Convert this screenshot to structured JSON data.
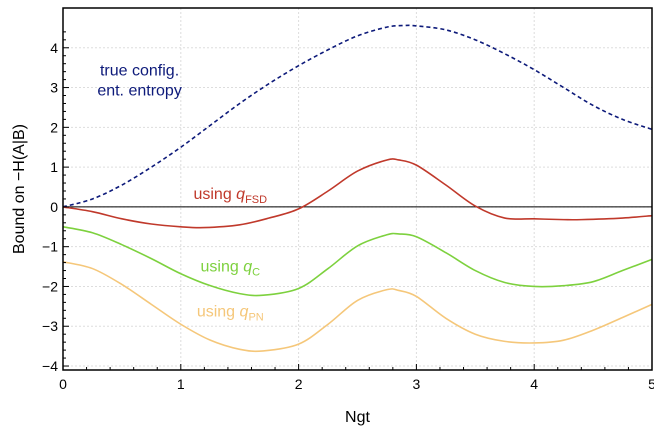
{
  "chart_data": {
    "type": "line",
    "xlabel": "Ngt",
    "ylabel": "Bound on −H(A|B)",
    "xlim": [
      0,
      5
    ],
    "ylim": [
      -4.1,
      5
    ],
    "xticks": [
      0,
      1,
      2,
      3,
      4,
      5
    ],
    "yticks": [
      -4,
      -3,
      -2,
      -1,
      0,
      1,
      2,
      3,
      4
    ],
    "grid": true,
    "zero_line": true,
    "series": [
      {
        "key": "true",
        "color": "#0d1a7a",
        "style": "dashed",
        "x": [
          0,
          0.25,
          0.5,
          0.75,
          1.0,
          1.25,
          1.5,
          1.75,
          2.0,
          2.25,
          2.5,
          2.75,
          2.9,
          3.0,
          3.25,
          3.5,
          3.75,
          4.0,
          4.25,
          4.5,
          4.75,
          5.0
        ],
        "y": [
          0,
          0.2,
          0.55,
          1.0,
          1.5,
          2.05,
          2.6,
          3.1,
          3.55,
          3.95,
          4.3,
          4.52,
          4.56,
          4.55,
          4.45,
          4.2,
          3.85,
          3.45,
          3.0,
          2.55,
          2.2,
          1.95
        ]
      },
      {
        "key": "qfsd",
        "color": "#c0392b",
        "style": "solid",
        "x": [
          0,
          0.25,
          0.5,
          0.75,
          1.0,
          1.2,
          1.5,
          1.75,
          2.0,
          2.25,
          2.5,
          2.75,
          2.85,
          3.0,
          3.25,
          3.5,
          3.75,
          4.0,
          4.25,
          4.4,
          4.75,
          5.0
        ],
        "y": [
          0,
          -0.12,
          -0.3,
          -0.43,
          -0.5,
          -0.52,
          -0.45,
          -0.28,
          -0.05,
          0.4,
          0.9,
          1.18,
          1.18,
          1.05,
          0.55,
          0.02,
          -0.28,
          -0.3,
          -0.32,
          -0.32,
          -0.28,
          -0.22
        ]
      },
      {
        "key": "qc",
        "color": "#7dd13e",
        "style": "solid",
        "x": [
          0,
          0.25,
          0.5,
          0.75,
          1.0,
          1.25,
          1.5,
          1.7,
          2.0,
          2.25,
          2.5,
          2.75,
          2.85,
          3.0,
          3.25,
          3.5,
          3.75,
          4.0,
          4.25,
          4.5,
          4.75,
          5.0
        ],
        "y": [
          -0.5,
          -0.65,
          -0.95,
          -1.3,
          -1.68,
          -1.98,
          -2.18,
          -2.22,
          -2.05,
          -1.55,
          -0.98,
          -0.7,
          -0.68,
          -0.75,
          -1.15,
          -1.6,
          -1.9,
          -2.0,
          -1.98,
          -1.88,
          -1.6,
          -1.32
        ]
      },
      {
        "key": "qpn",
        "color": "#f5c77a",
        "style": "solid",
        "x": [
          0,
          0.25,
          0.5,
          0.75,
          1.0,
          1.25,
          1.5,
          1.7,
          2.0,
          2.25,
          2.5,
          2.75,
          2.85,
          3.0,
          3.25,
          3.5,
          3.75,
          4.0,
          4.25,
          4.5,
          4.75,
          5.0
        ],
        "y": [
          -1.38,
          -1.55,
          -1.95,
          -2.45,
          -2.95,
          -3.35,
          -3.58,
          -3.62,
          -3.45,
          -2.95,
          -2.35,
          -2.08,
          -2.1,
          -2.25,
          -2.8,
          -3.2,
          -3.38,
          -3.42,
          -3.35,
          -3.1,
          -2.78,
          -2.45
        ]
      }
    ],
    "annotations": [
      {
        "key": "true",
        "lines": [
          "true config.",
          "ent. entropy"
        ],
        "color": "#0d1a7a",
        "x": 0.65,
        "y": 3.5
      },
      {
        "key": "qfsd",
        "prefix": "using ",
        "symbol": "q",
        "sub": "FSD",
        "color": "#c0392b",
        "x": 1.42,
        "y": 0.2
      },
      {
        "key": "qc",
        "prefix": "using ",
        "symbol": "q",
        "sub": "C",
        "color": "#7dd13e",
        "x": 1.42,
        "y": -1.62
      },
      {
        "key": "qpn",
        "prefix": "using ",
        "symbol": "q",
        "sub": "PN",
        "color": "#f5c77a",
        "x": 1.42,
        "y": -2.75
      }
    ]
  }
}
